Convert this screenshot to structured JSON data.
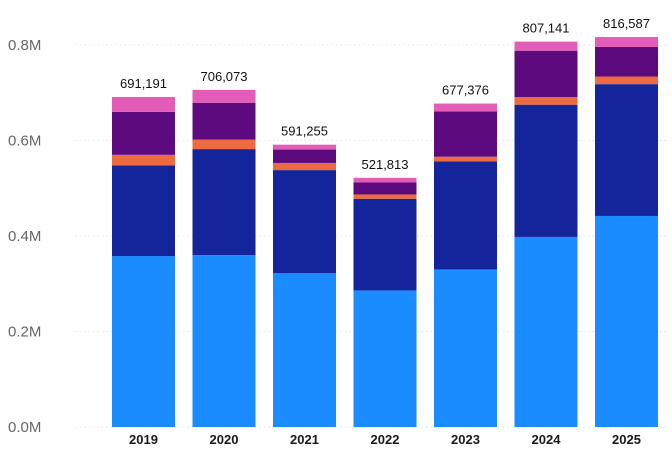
{
  "chart_data": {
    "type": "bar",
    "stacked": true,
    "title": "",
    "xlabel": "",
    "ylabel": "",
    "categories": [
      "2019",
      "2020",
      "2021",
      "2022",
      "2023",
      "2024",
      "2025"
    ],
    "totals": [
      "691,191",
      "706,073",
      "591,255",
      "521,813",
      "677,376",
      "807,141",
      "816,587"
    ],
    "ylim": [
      0,
      800000
    ],
    "y_ticks": [
      0,
      200000,
      400000,
      600000,
      800000
    ],
    "y_tick_labels": [
      "0.0M",
      "0.2M",
      "0.4M",
      "0.6M",
      "0.8M"
    ],
    "grid": true,
    "legend": "none",
    "series": [
      {
        "color": "#1a8cff",
        "values": [
          358000,
          360000,
          322000,
          286000,
          330000,
          398000,
          442000
        ]
      },
      {
        "color": "#14249a",
        "values": [
          190000,
          222000,
          216000,
          192000,
          226000,
          277000,
          276000
        ]
      },
      {
        "color": "#ee6a40",
        "values": [
          22000,
          20000,
          15000,
          9000,
          10000,
          16000,
          16000
        ]
      },
      {
        "color": "#5c0a7e",
        "values": [
          90000,
          77000,
          28000,
          25000,
          95000,
          97000,
          62000
        ]
      },
      {
        "color": "#e35cb8",
        "values": [
          31191,
          27073,
          10255,
          9813,
          16376,
          19141,
          20587
        ]
      }
    ]
  }
}
